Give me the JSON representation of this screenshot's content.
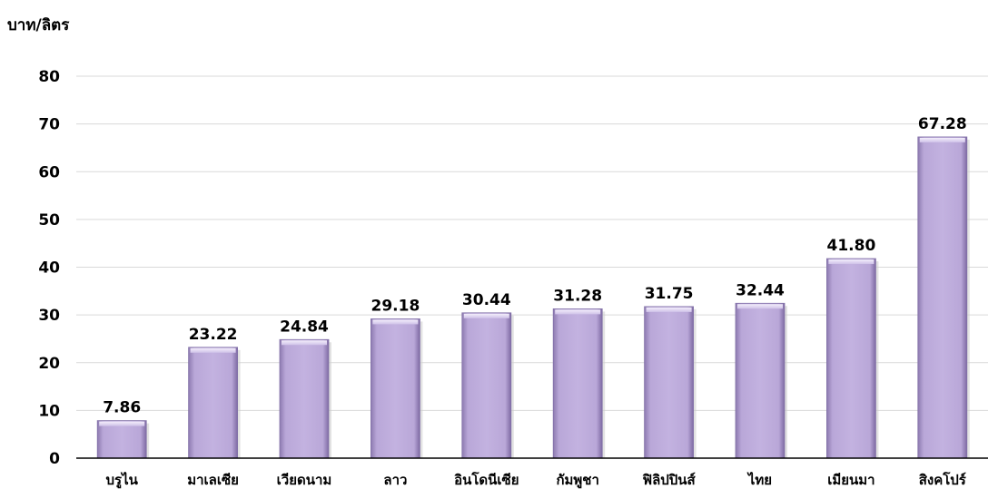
{
  "chart_data": {
    "type": "bar",
    "title": "",
    "xlabel": "",
    "ylabel": "บาท/ลิตร",
    "categories": [
      "บรูไน",
      "มาเลเซีย",
      "เวียดนาม",
      "ลาว",
      "อินโดนีเซีย",
      "กัมพูชา",
      "ฟิลิปปินส์",
      "ไทย",
      "เมียนมา",
      "สิงคโปร์"
    ],
    "values": [
      7.86,
      23.22,
      24.84,
      29.18,
      30.44,
      31.28,
      31.75,
      32.44,
      41.8,
      67.28
    ],
    "value_labels": [
      "7.86",
      "23.22",
      "24.84",
      "29.18",
      "30.44",
      "31.28",
      "31.75",
      "32.44",
      "41.80",
      "67.28"
    ],
    "ylim": [
      0,
      80
    ],
    "yticks": [
      0,
      10,
      20,
      30,
      40,
      50,
      60,
      70,
      80
    ],
    "grid": true,
    "bar_color": "#b8a6d6"
  }
}
